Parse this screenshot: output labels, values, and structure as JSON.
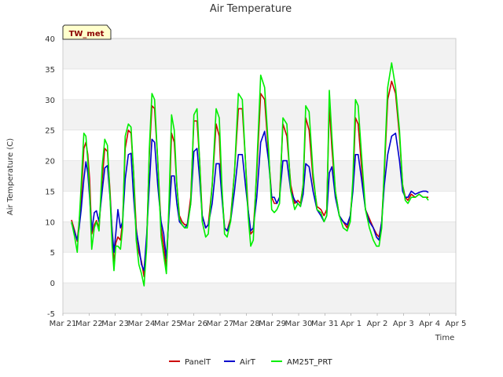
{
  "chart_data": {
    "type": "line",
    "title": "Air Temperature",
    "xlabel": "Time",
    "ylabel": "Air Temperature (C)",
    "site_label": "TW_met",
    "ylim": [
      -5,
      40
    ],
    "xlim": [
      0,
      15
    ],
    "y_ticks": [
      -5,
      0,
      5,
      10,
      15,
      20,
      25,
      30,
      35,
      40
    ],
    "x_tick_labels": [
      "Mar 21",
      "Mar 22",
      "Mar 23",
      "Mar 24",
      "Mar 25",
      "Mar 26",
      "Mar 27",
      "Mar 28",
      "Mar 29",
      "Mar 30",
      "Mar 31",
      "Apr 1",
      "Apr 2",
      "Apr 3",
      "Apr 4",
      "Apr 5"
    ],
    "grid": "horizontal bands",
    "legend_position": "bottom-center",
    "colors": {
      "band": "#f2f2f2",
      "grid": "#dddddd",
      "badge_fill": "#ffffcc"
    },
    "series": [
      {
        "name": "PanelT",
        "color": "#cc0000",
        "x": [
          0.33,
          0.45,
          0.55,
          0.62,
          0.7,
          0.8,
          0.88,
          0.95,
          1.02,
          1.1,
          1.2,
          1.28,
          1.38,
          1.5,
          1.6,
          1.7,
          1.8,
          1.88,
          1.95,
          2.02,
          2.1,
          2.2,
          2.28,
          2.38,
          2.5,
          2.6,
          2.7,
          2.8,
          2.9,
          3.0,
          3.1,
          3.2,
          3.3,
          3.4,
          3.5,
          3.62,
          3.75,
          3.85,
          3.95,
          4.05,
          4.15,
          4.25,
          4.35,
          4.45,
          4.55,
          4.65,
          4.75,
          4.88,
          5.0,
          5.12,
          5.22,
          5.32,
          5.45,
          5.55,
          5.7,
          5.85,
          5.97,
          6.07,
          6.17,
          6.27,
          6.4,
          6.55,
          6.7,
          6.85,
          6.97,
          7.07,
          7.17,
          7.27,
          7.4,
          7.55,
          7.7,
          7.85,
          7.97,
          8.07,
          8.17,
          8.27,
          8.4,
          8.55,
          8.7,
          8.85,
          8.97,
          9.07,
          9.17,
          9.27,
          9.4,
          9.55,
          9.7,
          9.85,
          9.97,
          10.07,
          10.17,
          10.27,
          10.4,
          10.55,
          10.7,
          10.85,
          10.97,
          11.07,
          11.17,
          11.27,
          11.4,
          11.55,
          11.7,
          11.85,
          11.97,
          12.07,
          12.17,
          12.27,
          12.4,
          12.55,
          12.7,
          12.85,
          12.97,
          13.07,
          13.17,
          13.3,
          13.45,
          13.6,
          13.75,
          13.87,
          13.95
        ],
        "y": [
          10.3,
          8.5,
          6.8,
          10.0,
          14.0,
          22.0,
          23.0,
          21.0,
          17.0,
          8.0,
          9.5,
          10.2,
          9.0,
          17.0,
          22.0,
          21.5,
          15.0,
          8.0,
          3.0,
          6.5,
          7.5,
          7.0,
          10.0,
          22.0,
          25.0,
          24.5,
          18.0,
          9.0,
          5.0,
          3.5,
          1.0,
          7.0,
          21.0,
          29.0,
          28.5,
          20.0,
          9.0,
          6.0,
          2.5,
          12.0,
          24.5,
          23.0,
          16.0,
          11.0,
          10.0,
          9.5,
          9.5,
          14.0,
          26.5,
          26.5,
          20.0,
          11.0,
          9.0,
          9.5,
          16.0,
          26.0,
          24.0,
          15.0,
          9.0,
          8.5,
          10.5,
          18.0,
          28.5,
          28.5,
          20.0,
          12.0,
          8.0,
          8.5,
          18.0,
          31.0,
          30.0,
          21.0,
          14.0,
          13.0,
          13.0,
          14.0,
          26.0,
          24.0,
          16.0,
          13.0,
          13.5,
          13.0,
          16.0,
          27.0,
          25.0,
          17.0,
          12.5,
          12.0,
          11.0,
          12.0,
          29.0,
          22.0,
          15.0,
          11.0,
          10.0,
          9.0,
          11.0,
          16.0,
          27.0,
          26.0,
          19.0,
          12.0,
          10.5,
          9.0,
          8.0,
          7.5,
          10.0,
          18.0,
          30.0,
          33.0,
          31.0,
          24.0,
          16.0,
          14.0,
          13.5,
          14.5,
          14.0,
          14.5,
          14.0,
          14.0,
          14.0
        ]
      },
      {
        "name": "AirT",
        "color": "#0000cc",
        "x": [
          0.33,
          0.45,
          0.55,
          0.62,
          0.7,
          0.8,
          0.88,
          0.95,
          1.02,
          1.1,
          1.2,
          1.28,
          1.38,
          1.5,
          1.6,
          1.7,
          1.8,
          1.88,
          1.95,
          2.02,
          2.1,
          2.2,
          2.28,
          2.38,
          2.5,
          2.6,
          2.7,
          2.8,
          2.9,
          3.0,
          3.1,
          3.2,
          3.3,
          3.4,
          3.5,
          3.62,
          3.75,
          3.85,
          3.95,
          4.05,
          4.15,
          4.25,
          4.35,
          4.45,
          4.55,
          4.65,
          4.75,
          4.88,
          5.0,
          5.12,
          5.22,
          5.32,
          5.45,
          5.55,
          5.7,
          5.85,
          5.97,
          6.07,
          6.17,
          6.27,
          6.4,
          6.55,
          6.7,
          6.85,
          6.97,
          7.07,
          7.17,
          7.27,
          7.4,
          7.55,
          7.7,
          7.85,
          7.97,
          8.07,
          8.17,
          8.27,
          8.4,
          8.55,
          8.7,
          8.85,
          8.97,
          9.07,
          9.17,
          9.27,
          9.4,
          9.55,
          9.7,
          9.85,
          9.97,
          10.07,
          10.17,
          10.27,
          10.4,
          10.55,
          10.7,
          10.85,
          10.97,
          11.07,
          11.17,
          11.27,
          11.4,
          11.55,
          11.7,
          11.85,
          11.97,
          12.07,
          12.17,
          12.27,
          12.4,
          12.55,
          12.7,
          12.85,
          12.97,
          13.07,
          13.17,
          13.3,
          13.45,
          13.6,
          13.75,
          13.87,
          13.95
        ],
        "y": [
          9.8,
          8.3,
          7.0,
          9.0,
          12.0,
          17.0,
          19.8,
          18.0,
          14.0,
          8.5,
          11.5,
          11.8,
          10.0,
          15.0,
          18.8,
          19.2,
          14.0,
          8.5,
          5.0,
          8.0,
          12.0,
          9.0,
          10.0,
          17.0,
          21.0,
          21.2,
          14.0,
          8.5,
          6.0,
          3.0,
          2.0,
          8.0,
          16.0,
          23.5,
          23.0,
          16.0,
          10.0,
          8.0,
          4.0,
          11.0,
          17.5,
          17.5,
          13.0,
          10.0,
          9.5,
          9.0,
          9.5,
          13.0,
          21.5,
          22.0,
          17.0,
          11.0,
          9.0,
          9.5,
          13.0,
          19.5,
          19.5,
          14.0,
          9.0,
          8.5,
          10.0,
          15.0,
          21.0,
          21.0,
          16.0,
          12.0,
          8.5,
          9.0,
          14.0,
          23.0,
          24.8,
          20.0,
          14.0,
          14.0,
          13.0,
          14.0,
          20.0,
          20.0,
          15.0,
          13.5,
          13.0,
          12.5,
          14.5,
          19.5,
          19.0,
          15.0,
          12.0,
          11.0,
          10.0,
          11.0,
          18.0,
          19.0,
          14.0,
          11.0,
          10.0,
          9.5,
          11.0,
          15.0,
          21.0,
          21.0,
          17.0,
          12.0,
          10.0,
          9.0,
          7.5,
          7.0,
          10.0,
          16.0,
          21.0,
          24.0,
          24.5,
          20.0,
          15.0,
          14.0,
          14.0,
          15.0,
          14.5,
          14.8,
          15.0,
          15.0,
          14.8
        ]
      },
      {
        "name": "AM25T_PRT",
        "color": "#00ee00",
        "x": [
          0.33,
          0.45,
          0.55,
          0.62,
          0.7,
          0.8,
          0.88,
          0.95,
          1.02,
          1.1,
          1.2,
          1.28,
          1.38,
          1.5,
          1.6,
          1.7,
          1.8,
          1.88,
          1.95,
          2.02,
          2.1,
          2.2,
          2.28,
          2.38,
          2.5,
          2.6,
          2.7,
          2.8,
          2.9,
          3.0,
          3.1,
          3.2,
          3.3,
          3.4,
          3.5,
          3.62,
          3.75,
          3.85,
          3.95,
          4.05,
          4.15,
          4.25,
          4.35,
          4.45,
          4.55,
          4.65,
          4.75,
          4.88,
          5.0,
          5.12,
          5.22,
          5.32,
          5.45,
          5.55,
          5.7,
          5.85,
          5.97,
          6.07,
          6.17,
          6.27,
          6.4,
          6.55,
          6.7,
          6.85,
          6.97,
          7.07,
          7.17,
          7.27,
          7.4,
          7.55,
          7.7,
          7.85,
          7.97,
          8.07,
          8.17,
          8.27,
          8.4,
          8.55,
          8.7,
          8.85,
          8.97,
          9.07,
          9.17,
          9.27,
          9.4,
          9.55,
          9.7,
          9.85,
          9.97,
          10.07,
          10.17,
          10.27,
          10.4,
          10.55,
          10.7,
          10.85,
          10.97,
          11.07,
          11.17,
          11.27,
          11.4,
          11.55,
          11.7,
          11.85,
          11.97,
          12.07,
          12.17,
          12.27,
          12.4,
          12.55,
          12.7,
          12.85,
          12.97,
          13.07,
          13.17,
          13.3,
          13.45,
          13.6,
          13.75,
          13.87,
          13.95
        ],
        "y": [
          10.0,
          7.5,
          5.0,
          10.0,
          16.0,
          24.5,
          24.0,
          20.0,
          15.0,
          5.5,
          9.0,
          10.0,
          8.5,
          19.0,
          23.5,
          22.5,
          14.0,
          6.0,
          2.0,
          6.0,
          6.0,
          5.5,
          9.0,
          24.0,
          26.0,
          25.5,
          18.0,
          7.0,
          3.0,
          1.5,
          -0.5,
          6.0,
          22.0,
          31.0,
          30.0,
          20.0,
          7.5,
          4.5,
          1.5,
          13.0,
          27.5,
          25.0,
          16.0,
          10.5,
          9.5,
          9.0,
          9.0,
          13.0,
          27.5,
          28.5,
          20.0,
          10.0,
          7.5,
          8.0,
          16.0,
          28.5,
          27.0,
          16.0,
          8.0,
          7.5,
          10.0,
          18.0,
          31.0,
          30.0,
          20.0,
          11.0,
          6.0,
          7.0,
          19.0,
          34.0,
          32.0,
          22.0,
          12.0,
          11.5,
          12.0,
          13.0,
          27.0,
          26.0,
          15.0,
          12.0,
          13.0,
          12.5,
          16.0,
          29.0,
          28.0,
          18.0,
          12.0,
          11.5,
          10.0,
          11.0,
          31.5,
          24.0,
          15.0,
          11.0,
          9.0,
          8.5,
          10.0,
          17.0,
          30.0,
          29.0,
          21.0,
          12.0,
          9.0,
          7.0,
          6.0,
          6.0,
          9.0,
          19.0,
          32.0,
          36.0,
          32.0,
          25.0,
          16.0,
          13.5,
          13.0,
          14.0,
          14.0,
          14.5,
          14.0,
          14.0,
          13.5
        ]
      }
    ]
  }
}
